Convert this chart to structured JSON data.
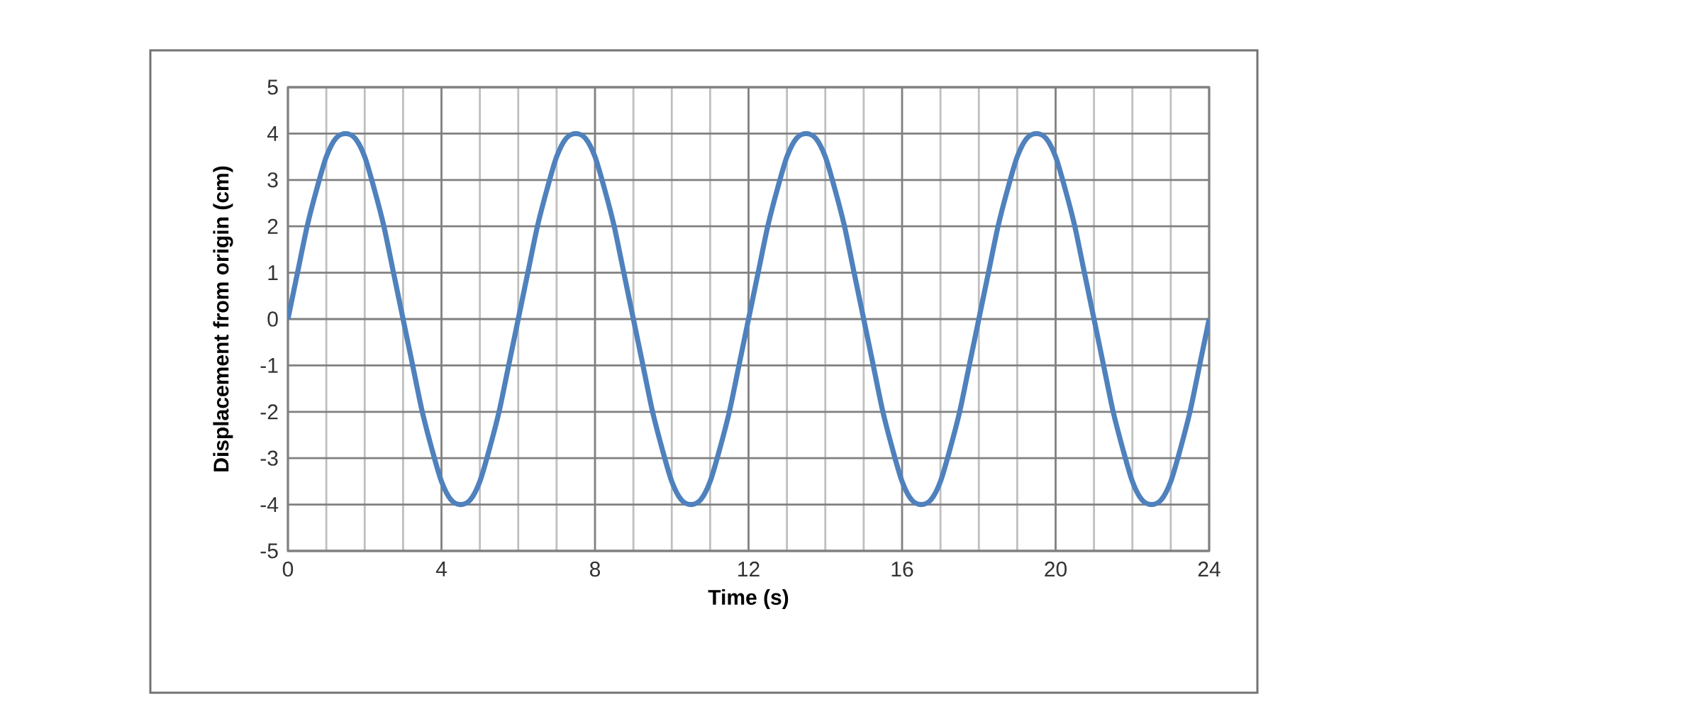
{
  "chart_data": {
    "type": "line",
    "xlabel": "Time (s)",
    "ylabel": "Displacement from origin (cm)",
    "series": [
      {
        "color": "#4f81bd",
        "x": [
          0,
          0.25,
          0.5,
          0.75,
          1,
          1.25,
          1.5,
          1.75,
          2,
          2.25,
          2.5,
          2.75,
          3,
          3.25,
          3.5,
          3.75,
          4,
          4.25,
          4.5,
          4.75,
          5,
          5.25,
          5.5,
          5.75,
          6,
          6.25,
          6.5,
          6.75,
          7,
          7.25,
          7.5,
          7.75,
          8,
          8.25,
          8.5,
          8.75,
          9,
          9.25,
          9.5,
          9.75,
          10,
          10.25,
          10.5,
          10.75,
          11,
          11.25,
          11.5,
          11.75,
          12,
          12.25,
          12.5,
          12.75,
          13,
          13.25,
          13.5,
          13.75,
          14,
          14.25,
          14.5,
          14.75,
          15,
          15.25,
          15.5,
          15.75,
          16,
          16.25,
          16.5,
          16.75,
          17,
          17.25,
          17.5,
          17.75,
          18,
          18.25,
          18.5,
          18.75,
          19,
          19.25,
          19.5,
          19.75,
          20,
          20.25,
          20.5,
          20.75,
          21,
          21.25,
          21.5,
          21.75,
          22,
          22.25,
          22.5,
          22.75,
          23,
          23.25,
          23.5,
          23.75,
          24
        ],
        "values": [
          0,
          1.0,
          2.0,
          2.8,
          3.5,
          3.9,
          4.0,
          3.9,
          3.5,
          2.8,
          2.0,
          1.0,
          0,
          -1.0,
          -2.0,
          -2.8,
          -3.5,
          -3.9,
          -4.0,
          -3.9,
          -3.5,
          -2.8,
          -2.0,
          -1.0,
          0,
          1.0,
          2.0,
          2.8,
          3.5,
          3.9,
          4.0,
          3.9,
          3.5,
          2.8,
          2.0,
          1.0,
          0,
          -1.0,
          -2.0,
          -2.8,
          -3.5,
          -3.9,
          -4.0,
          -3.9,
          -3.5,
          -2.8,
          -2.0,
          -1.0,
          0,
          1.0,
          2.0,
          2.8,
          3.5,
          3.9,
          4.0,
          3.9,
          3.5,
          2.8,
          2.0,
          1.0,
          0,
          -1.0,
          -2.0,
          -2.8,
          -3.5,
          -3.9,
          -4.0,
          -3.9,
          -3.5,
          -2.8,
          -2.0,
          -1.0,
          0,
          1.0,
          2.0,
          2.8,
          3.5,
          3.9,
          4.0,
          3.9,
          3.5,
          2.8,
          2.0,
          1.0,
          0,
          -1.0,
          -2.0,
          -2.8,
          -3.5,
          -3.9,
          -4.0,
          -3.9,
          -3.5,
          -2.8,
          -2.0,
          -1.0,
          0
        ]
      }
    ],
    "xlim": [
      0,
      24
    ],
    "xticks": [
      0,
      4,
      8,
      12,
      16,
      20,
      24
    ],
    "ylim": [
      -5,
      5
    ],
    "yticks": [
      -5,
      -4,
      -3,
      -2,
      -1,
      0,
      1,
      2,
      3,
      4,
      5
    ],
    "grid": true,
    "marker": "none",
    "line_style": "solid"
  }
}
